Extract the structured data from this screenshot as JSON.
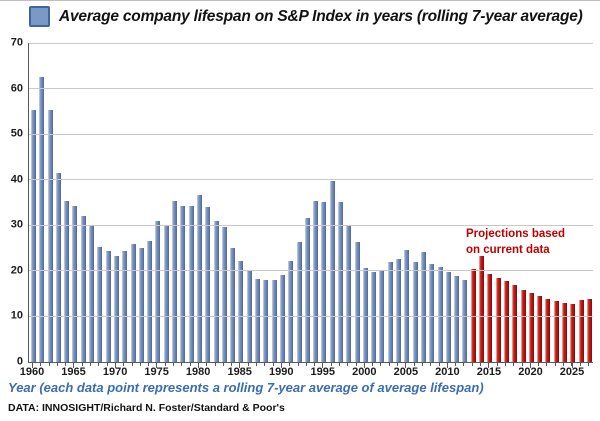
{
  "title": "Average company lifespan on S&P Index in years (rolling 7-year average)",
  "annotation": {
    "line1": "Projections based",
    "line2": "on current data"
  },
  "x_axis_caption": "Year (each data point represents a rolling 7-year average of average lifespan)",
  "source": "DATA: INNOSIGHT/Richard N. Foster/Standard & Poor's",
  "colors": {
    "historical_bar": "#7088b6",
    "projection_bar": "#b31410",
    "annotation_text": "#c00000",
    "x_axis_caption_text": "#3a6cb5",
    "legend_swatch_fill": "#7b99c7",
    "legend_swatch_border": "#44629b",
    "gridline": "#c9c9c9"
  },
  "chart_data": {
    "type": "bar",
    "title": "Average company lifespan on S&P Index in years (rolling 7-year average)",
    "xlabel": "Year (each data point represents a rolling 7-year average of average lifespan)",
    "ylabel": "",
    "ylim": [
      0,
      70
    ],
    "y_ticks": [
      0,
      10,
      20,
      30,
      40,
      50,
      60,
      70
    ],
    "x_tick_years": [
      1960,
      1965,
      1970,
      1975,
      1980,
      1985,
      1990,
      1995,
      2000,
      2005,
      2010,
      2015,
      2020,
      2025
    ],
    "grid": "horizontal",
    "legend_position": "title-left-swatch",
    "series": [
      {
        "name": "Average company lifespan on S&P Index in years",
        "color_class": "blue",
        "color": "#7088b6",
        "start_year": 1960,
        "end_year": 2012,
        "values": [
          55.4,
          62.5,
          55.4,
          41.5,
          35.4,
          34.3,
          32.1,
          29.9,
          25.2,
          24.4,
          23.3,
          24.3,
          25.8,
          25.1,
          26.6,
          31,
          29.9,
          35.4,
          34.2,
          34.2,
          36.7,
          34.1,
          31,
          29.7,
          25.1,
          22.1,
          20.2,
          18.3,
          17.9,
          17.9,
          19.1,
          22.2,
          26.4,
          31.6,
          35.3,
          35.2,
          39.8,
          35.2,
          29.9,
          26.3,
          20.7,
          19.8,
          20.3,
          21.9,
          22.5,
          24.6,
          21.9,
          24.1,
          21.6,
          20.8,
          19.8,
          18.9,
          18
        ]
      },
      {
        "name": "Projections based on current data",
        "color_class": "red",
        "color": "#b31410",
        "start_year": 2013,
        "end_year": 2027,
        "values": [
          20.5,
          23.2,
          19.4,
          18.5,
          17.7,
          16.8,
          15.9,
          15.2,
          14.5,
          13.8,
          13.3,
          13,
          12.8,
          13.7,
          13.8
        ]
      }
    ]
  }
}
